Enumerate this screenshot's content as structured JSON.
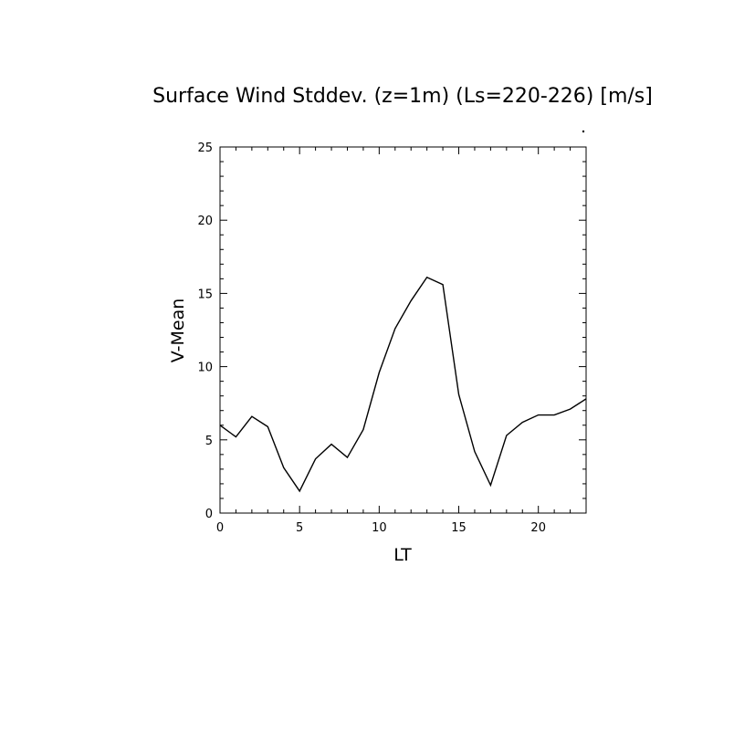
{
  "chart_data": {
    "type": "line",
    "title": "Surface Wind Stddev. (z=1m) (Ls=220-226) [m/s]",
    "xlabel": "LT",
    "ylabel": "V-Mean",
    "xlim": [
      0,
      23
    ],
    "ylim": [
      0,
      25
    ],
    "x_ticks": [
      0,
      5,
      10,
      15,
      20
    ],
    "y_ticks": [
      0,
      5,
      10,
      15,
      20,
      25
    ],
    "x_tick_labels": [
      "0",
      "5",
      "10",
      "15",
      "20"
    ],
    "y_tick_labels": [
      "0",
      "5",
      "10",
      "15",
      "20",
      "25"
    ],
    "grid": false,
    "series": [
      {
        "x": [
          0,
          1,
          2,
          3,
          4,
          5,
          6,
          7,
          8,
          9,
          10,
          11,
          12,
          13,
          14,
          15,
          16,
          17,
          18,
          19,
          20,
          21,
          22,
          23
        ],
        "values": [
          6.0,
          5.2,
          6.6,
          5.9,
          3.1,
          1.5,
          3.7,
          4.7,
          3.8,
          5.7,
          9.6,
          12.6,
          14.5,
          16.1,
          15.6,
          8.1,
          4.2,
          1.9,
          5.3,
          6.2,
          6.7,
          6.7,
          7.1,
          7.8
        ],
        "color": "#000000"
      }
    ]
  }
}
